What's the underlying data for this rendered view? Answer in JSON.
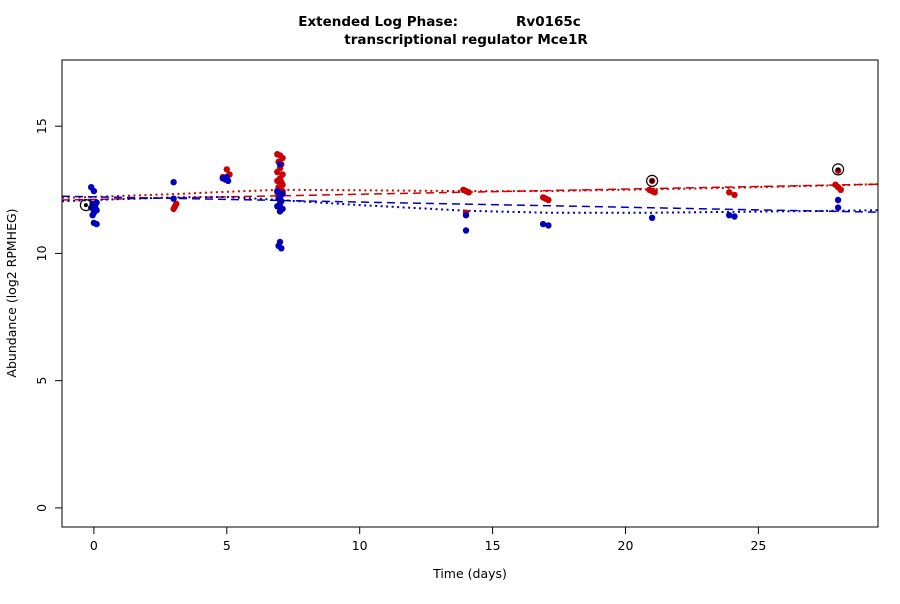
{
  "title": {
    "line1_left": "Extended Log Phase:",
    "line1_right": "Rv0165c",
    "line2": "transcriptional regulator Mce1R"
  },
  "chart_data": {
    "type": "scatter",
    "title": "Extended Log Phase: Rv0165c — transcriptional regulator Mce1R",
    "xlabel": "Time  (days)",
    "ylabel": "Abundance  (log2 RPMHEG)",
    "xlim": [
      -1.2,
      29.5
    ],
    "ylim": [
      -0.75,
      17.6
    ],
    "xticks": [
      0,
      5,
      10,
      15,
      20,
      25
    ],
    "yticks": [
      0,
      5,
      10,
      15
    ],
    "grid": false,
    "legend": "none",
    "point_radius": 3.2,
    "colors": {
      "red_series": "#cc0000",
      "blue_series": "#0000bb",
      "axis": "#000000"
    },
    "series": [
      {
        "name": "red-series",
        "color": "#cc0000",
        "points": [
          [
            3.0,
            11.75
          ],
          [
            3.05,
            11.85
          ],
          [
            3.1,
            11.95
          ],
          [
            4.85,
            13.0
          ],
          [
            5.0,
            13.3
          ],
          [
            5.1,
            13.1
          ],
          [
            4.95,
            12.95
          ],
          [
            6.9,
            13.9
          ],
          [
            7.0,
            13.85
          ],
          [
            7.1,
            13.75
          ],
          [
            6.95,
            13.6
          ],
          [
            7.05,
            13.5
          ],
          [
            7.0,
            13.35
          ],
          [
            6.9,
            13.2
          ],
          [
            7.1,
            13.1
          ],
          [
            7.0,
            12.95
          ],
          [
            6.9,
            12.85
          ],
          [
            7.05,
            12.8
          ],
          [
            7.1,
            12.7
          ],
          [
            6.95,
            12.6
          ],
          [
            7.0,
            12.5
          ],
          [
            7.1,
            12.45
          ],
          [
            6.9,
            12.4
          ],
          [
            7.0,
            12.35
          ],
          [
            7.05,
            12.3
          ],
          [
            6.95,
            12.25
          ],
          [
            7.0,
            12.2
          ],
          [
            13.9,
            12.5
          ],
          [
            14.0,
            12.45
          ],
          [
            14.1,
            12.4
          ],
          [
            14.0,
            11.6
          ],
          [
            16.9,
            12.2
          ],
          [
            17.0,
            12.15
          ],
          [
            17.1,
            12.1
          ],
          [
            20.9,
            12.5
          ],
          [
            21.0,
            12.45
          ],
          [
            21.1,
            12.4
          ],
          [
            21.0,
            12.85
          ],
          [
            23.9,
            12.4
          ],
          [
            24.1,
            12.3
          ],
          [
            27.9,
            12.7
          ],
          [
            28.0,
            12.6
          ],
          [
            28.1,
            12.5
          ],
          [
            28.0,
            13.25
          ]
        ]
      },
      {
        "name": "blue-series",
        "color": "#0000bb",
        "points": [
          [
            -0.1,
            12.6
          ],
          [
            0.0,
            12.45
          ],
          [
            0.1,
            12.0
          ],
          [
            -0.05,
            11.95
          ],
          [
            0.05,
            11.85
          ],
          [
            -0.1,
            11.8
          ],
          [
            0.1,
            11.7
          ],
          [
            0.0,
            11.6
          ],
          [
            -0.05,
            11.5
          ],
          [
            0.0,
            11.2
          ],
          [
            0.1,
            11.15
          ],
          [
            3.0,
            12.8
          ],
          [
            3.0,
            12.15
          ],
          [
            4.85,
            12.95
          ],
          [
            4.95,
            12.9
          ],
          [
            5.05,
            12.85
          ],
          [
            5.0,
            13.0
          ],
          [
            7.0,
            13.5
          ],
          [
            6.9,
            12.45
          ],
          [
            7.1,
            12.35
          ],
          [
            7.0,
            12.25
          ],
          [
            6.95,
            12.15
          ],
          [
            7.05,
            12.05
          ],
          [
            7.0,
            11.95
          ],
          [
            6.9,
            11.85
          ],
          [
            7.1,
            11.75
          ],
          [
            7.0,
            11.65
          ],
          [
            7.0,
            10.45
          ],
          [
            6.95,
            10.3
          ],
          [
            7.05,
            10.2
          ],
          [
            14.0,
            11.5
          ],
          [
            14.0,
            10.9
          ],
          [
            16.9,
            11.15
          ],
          [
            17.1,
            11.1
          ],
          [
            21.0,
            11.4
          ],
          [
            23.9,
            11.5
          ],
          [
            24.1,
            11.45
          ],
          [
            28.0,
            12.1
          ],
          [
            28.0,
            11.8
          ]
        ]
      }
    ],
    "trend_lines": [
      {
        "name": "red-loess-dotted",
        "color": "#cc0000",
        "style": "dotted",
        "dash": "2 3.5",
        "width": 2,
        "points": [
          [
            -1.2,
            12.18
          ],
          [
            0,
            12.22
          ],
          [
            3,
            12.33
          ],
          [
            5,
            12.42
          ],
          [
            7,
            12.5
          ],
          [
            10,
            12.48
          ],
          [
            14,
            12.45
          ],
          [
            17,
            12.45
          ],
          [
            21,
            12.52
          ],
          [
            24,
            12.58
          ],
          [
            28,
            12.68
          ],
          [
            29.5,
            12.72
          ]
        ]
      },
      {
        "name": "red-linear-dashed",
        "color": "#cc0000",
        "style": "dashed",
        "dash": "8 5",
        "width": 1.5,
        "points": [
          [
            -1.2,
            12.1
          ],
          [
            29.5,
            12.72
          ]
        ]
      },
      {
        "name": "blue-linear-dashed",
        "color": "#0000bb",
        "style": "dashed",
        "dash": "8 5",
        "width": 1.5,
        "points": [
          [
            -1.2,
            12.25
          ],
          [
            29.5,
            11.62
          ]
        ]
      },
      {
        "name": "blue-loess-dotted",
        "color": "#0000bb",
        "style": "dotted",
        "dash": "2 3.5",
        "width": 2,
        "points": [
          [
            -1.2,
            12.05
          ],
          [
            0,
            12.1
          ],
          [
            3,
            12.2
          ],
          [
            5,
            12.22
          ],
          [
            7,
            12.1
          ],
          [
            10,
            11.9
          ],
          [
            14,
            11.68
          ],
          [
            17,
            11.6
          ],
          [
            21,
            11.6
          ],
          [
            24,
            11.63
          ],
          [
            28,
            11.68
          ],
          [
            29.5,
            11.7
          ]
        ]
      }
    ],
    "circled_points": [
      [
        -0.3,
        11.9
      ],
      [
        21.0,
        12.85
      ],
      [
        28.0,
        13.3
      ]
    ]
  }
}
